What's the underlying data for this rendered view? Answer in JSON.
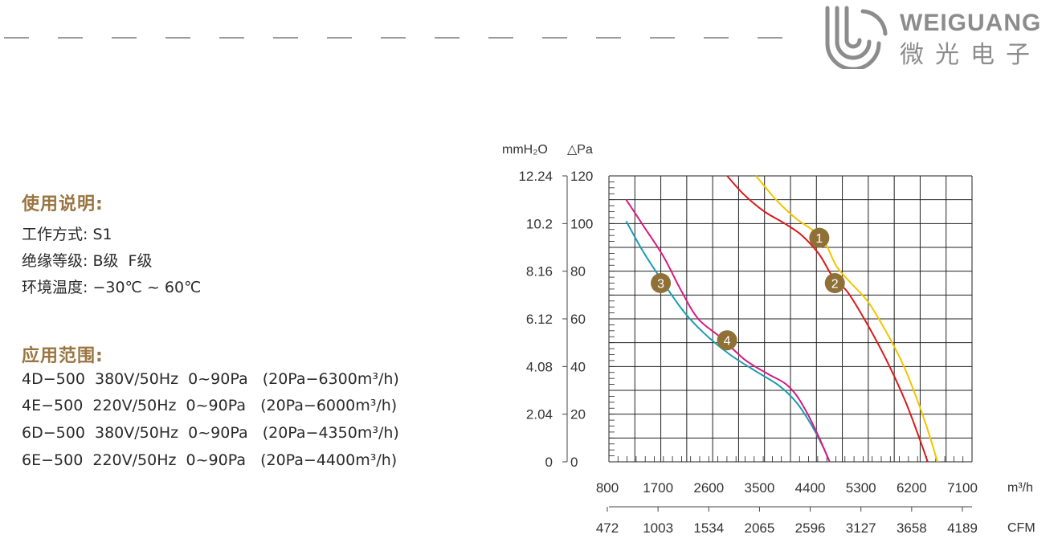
{
  "brand": {
    "name": "WEIGUANG",
    "chinese": "微光电子"
  },
  "usage": {
    "title": "使用说明:",
    "lines": [
      "工作方式: S1",
      "绝缘等级: B级  F级",
      "环境温度: −30℃ ~ 60℃"
    ]
  },
  "application": {
    "title": "应用范围:",
    "lines": [
      "4D−500  380V/50Hz  0~90Pa   (20Pa−6300m³/h)",
      "4E−500  220V/50Hz  0~90Pa   (20Pa−6000m³/h)",
      "6D−500  380V/50Hz  0~90Pa   (20Pa−4350m³/h)",
      "6E−500  220V/50Hz  0~90Pa   (20Pa−4400m³/h)"
    ]
  },
  "chart_data": {
    "type": "line",
    "y_unit_left": "mmH₂O",
    "y_unit_right": "△Pa",
    "x_unit_top": "m³/h",
    "x_unit_bottom": "CFM",
    "x_ticks_m3h": [
      "800",
      "1700",
      "2600",
      "3500",
      "4400",
      "5300",
      "6200",
      "7100"
    ],
    "x_ticks_cfm": [
      "472",
      "1003",
      "1534",
      "2065",
      "2596",
      "3127",
      "3658",
      "4189"
    ],
    "y_ticks_pa": [
      "0",
      "20",
      "40",
      "60",
      "80",
      "100",
      "120"
    ],
    "y_ticks_mmh2o": [
      "0",
      "2.04",
      "4.08",
      "6.12",
      "8.16",
      "10.2",
      "12.24"
    ],
    "xlim": [
      800,
      7100
    ],
    "ylim": [
      0,
      120
    ],
    "grid": true,
    "series": [
      {
        "name": "1",
        "color": "#f2c500",
        "x": [
          3350,
          3700,
          4050,
          4350,
          4550,
          4750,
          5000,
          5300,
          5600,
          5900,
          6150,
          6350,
          6500
        ],
        "y": [
          120,
          110,
          102,
          97,
          92,
          82,
          75,
          67,
          55,
          41,
          26,
          12,
          0
        ],
        "label_at": [
          4450,
          94
        ]
      },
      {
        "name": "2",
        "color": "#d81b1b",
        "x": [
          2850,
          3150,
          3500,
          3850,
          4150,
          4450,
          4700,
          4950,
          5300,
          5650,
          5950,
          6200,
          6330
        ],
        "y": [
          120,
          112,
          105,
          100,
          95,
          87,
          77,
          71,
          57,
          41,
          25,
          9,
          0
        ],
        "label_at": [
          4720,
          75
        ]
      },
      {
        "name": "3",
        "color": "#1a9cb4",
        "x": [
          1100,
          1400,
          1750,
          2100,
          2450,
          2900,
          3350,
          3750,
          4050,
          4300,
          4500,
          4630
        ],
        "y": [
          101,
          88,
          75,
          63,
          54,
          45,
          38,
          32,
          25,
          16,
          7,
          0
        ],
        "label_at": [
          1700,
          75
        ]
      },
      {
        "name": "4",
        "color": "#d81b7f",
        "x": [
          1100,
          1400,
          1750,
          2050,
          2350,
          2750,
          3150,
          3550,
          3850,
          4050,
          4250,
          4450,
          4630
        ],
        "y": [
          110,
          99,
          86,
          72,
          60,
          52,
          43,
          37,
          33,
          28,
          20,
          10,
          0
        ],
        "label_at": [
          2850,
          51
        ]
      }
    ]
  }
}
